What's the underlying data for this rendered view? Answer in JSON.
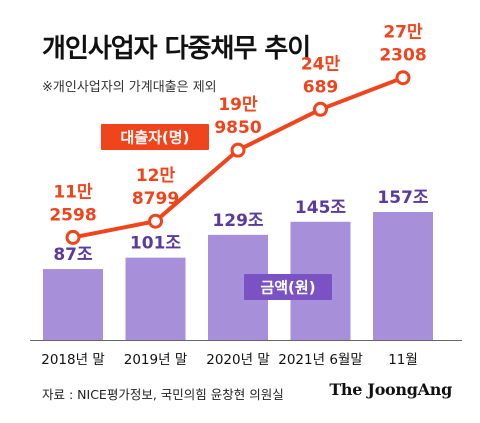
{
  "title": "개인사업자 다중채무 추이",
  "subtitle": "※개인사업자의 가계대출은 제외",
  "source": "자료 : NICE평가정보, 국민의힘 윤창현 의원실",
  "logo": "The JoongAng",
  "colors": {
    "bar": "#a88fd9",
    "bar_label": "#5b3aa0",
    "line": "#f0441c",
    "line_label": "#f0441c",
    "badge_bg": "#f0441c",
    "badge_bar_bg": "#7a52c4"
  },
  "chart_data": {
    "type": "bar",
    "categories": [
      "2018년 말",
      "2019년 말",
      "2020년 말",
      "2021년 6월말",
      "11월"
    ],
    "series": [
      {
        "name": "금액(원)",
        "type": "bar",
        "values": [
          87,
          101,
          129,
          145,
          157
        ],
        "labels": [
          "87조",
          "101조",
          "129조",
          "145조",
          "157조"
        ]
      },
      {
        "name": "대출자(명)",
        "type": "line",
        "values": [
          112598,
          128799,
          199850,
          240689,
          272308
        ],
        "labels": [
          [
            "11만",
            "2598"
          ],
          [
            "12만",
            "8799"
          ],
          [
            "19만",
            "9850"
          ],
          [
            "24만",
            "689"
          ],
          [
            "27만",
            "2308"
          ]
        ]
      }
    ],
    "bar_ylim": [
      0,
      195
    ],
    "line_ylim": [
      0,
      330000
    ],
    "grid": false
  }
}
